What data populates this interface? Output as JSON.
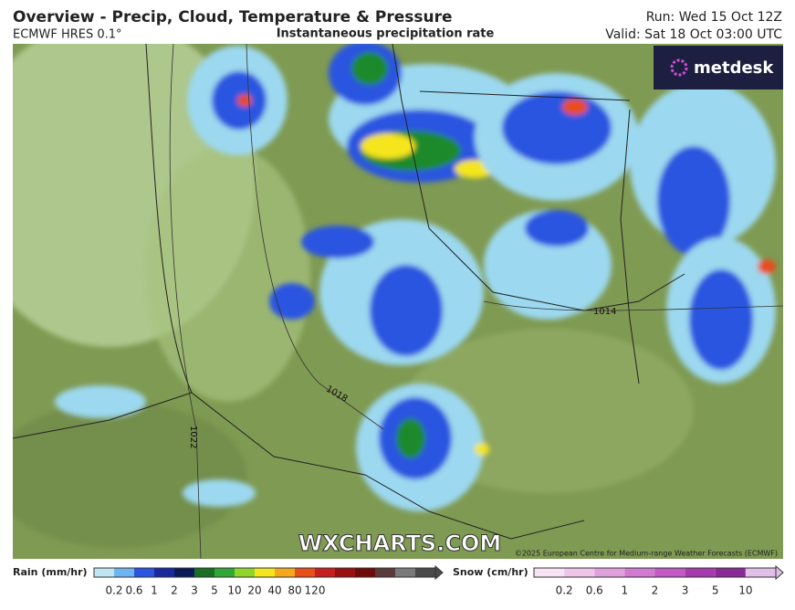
{
  "header": {
    "title": "Overview - Precip, Cloud, Temperature & Pressure",
    "model": "ECMWF HRES 0.1°",
    "subtitle": "Instantaneous precipitation rate",
    "run": "Run: Wed 15 Oct 12Z",
    "valid": "Valid: Sat 18 Oct 03:00 UTC"
  },
  "map": {
    "logo": "metdesk",
    "watermark": "WXCHARTS.COM",
    "copyright": "©2025 European Centre for Medium-range Weather Forecasts (ECMWF)",
    "isobars": [
      "1014",
      "1018",
      "1022"
    ]
  },
  "legend": {
    "rain_title": "Rain (mm/hr)",
    "rain_labels": [
      0.2,
      0.6,
      1,
      2,
      3,
      5,
      10,
      20,
      40,
      80,
      120
    ],
    "snow_title": "Snow (cm/hr)",
    "snow_labels": [
      0.2,
      0.6,
      1,
      2,
      3,
      5,
      10
    ]
  }
}
